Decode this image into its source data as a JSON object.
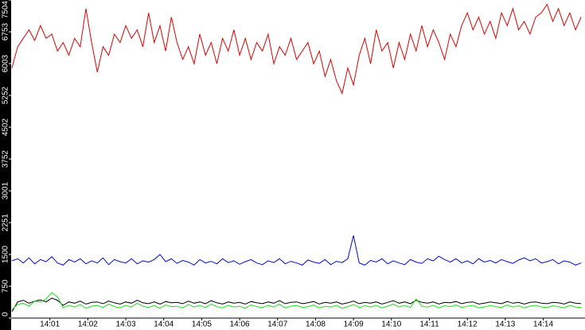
{
  "chart_data": {
    "type": "line",
    "xlim": [
      0,
      15.1
    ],
    "xticks": [
      {
        "value": 1,
        "label": "14:01"
      },
      {
        "value": 2,
        "label": "14:02"
      },
      {
        "value": 3,
        "label": "14:03"
      },
      {
        "value": 4,
        "label": "14:04"
      },
      {
        "value": 5,
        "label": "14:05"
      },
      {
        "value": 6,
        "label": "14:06"
      },
      {
        "value": 7,
        "label": "14:07"
      },
      {
        "value": 8,
        "label": "14:08"
      },
      {
        "value": 9,
        "label": "14:09"
      },
      {
        "value": 10,
        "label": "14:10"
      },
      {
        "value": 11,
        "label": "14:11"
      },
      {
        "value": 12,
        "label": "14:12"
      },
      {
        "value": 13,
        "label": "14:13"
      },
      {
        "value": 14,
        "label": "14:14"
      }
    ],
    "ylim": [
      0,
      7504
    ],
    "yticks": [
      0,
      750,
      1500,
      2251,
      3001,
      3752,
      4502,
      5252,
      6003,
      6753,
      7504
    ],
    "x": [
      0,
      0.15,
      0.3,
      0.45,
      0.6,
      0.75,
      0.9,
      1.05,
      1.2,
      1.35,
      1.5,
      1.65,
      1.8,
      1.95,
      2.1,
      2.25,
      2.4,
      2.55,
      2.7,
      2.85,
      3,
      3.15,
      3.3,
      3.45,
      3.6,
      3.75,
      3.9,
      4.05,
      4.2,
      4.35,
      4.5,
      4.65,
      4.8,
      4.95,
      5.1,
      5.25,
      5.4,
      5.55,
      5.7,
      5.85,
      6,
      6.15,
      6.3,
      6.45,
      6.6,
      6.75,
      6.9,
      7.05,
      7.2,
      7.35,
      7.5,
      7.65,
      7.8,
      7.95,
      8.1,
      8.25,
      8.4,
      8.55,
      8.7,
      8.85,
      9,
      9.15,
      9.3,
      9.45,
      9.6,
      9.75,
      9.9,
      10.05,
      10.2,
      10.35,
      10.5,
      10.65,
      10.8,
      10.95,
      11.1,
      11.25,
      11.4,
      11.55,
      11.7,
      11.85,
      12,
      12.15,
      12.3,
      12.45,
      12.6,
      12.75,
      12.9,
      13.05,
      13.2,
      13.35,
      13.5,
      13.65,
      13.8,
      13.95,
      14.1,
      14.25,
      14.4,
      14.55,
      14.7,
      14.85,
      15
    ],
    "series": [
      {
        "color": "#e00000",
        "values": [
          5900,
          6400,
          6600,
          6800,
          6550,
          6900,
          6600,
          6700,
          6300,
          6500,
          6200,
          6600,
          6400,
          7300,
          6500,
          5800,
          6400,
          6200,
          6700,
          6500,
          6900,
          6600,
          6800,
          6400,
          7200,
          6500,
          6900,
          6300,
          7100,
          6500,
          6100,
          6400,
          6000,
          6700,
          6200,
          6500,
          6000,
          6600,
          6300,
          6800,
          6200,
          6600,
          6100,
          6500,
          6300,
          6700,
          6000,
          6400,
          6200,
          6600,
          6100,
          6300,
          6500,
          6000,
          6300,
          5700,
          6100,
          5600,
          5300,
          5900,
          5500,
          6200,
          6600,
          6000,
          6800,
          6300,
          6500,
          5900,
          6500,
          6100,
          6700,
          6300,
          6900,
          6400,
          6800,
          6500,
          6100,
          6700,
          6400,
          6900,
          7200,
          6800,
          7100,
          6700,
          7000,
          6600,
          7200,
          6900,
          7300,
          6800,
          7000,
          6700,
          7100,
          7200,
          7400,
          7000,
          7300,
          6900,
          7200,
          6800,
          7100
        ]
      },
      {
        "color": "#0010c0",
        "values": [
          1350,
          1400,
          1300,
          1420,
          1280,
          1380,
          1330,
          1450,
          1300,
          1250,
          1380,
          1320,
          1400,
          1280,
          1350,
          1300,
          1420,
          1260,
          1380,
          1330,
          1300,
          1400,
          1280,
          1350,
          1320,
          1380,
          1500,
          1330,
          1400,
          1290,
          1360,
          1320,
          1250,
          1380,
          1300,
          1340,
          1280,
          1400,
          1310,
          1350,
          1270,
          1330,
          1380,
          1300,
          1260,
          1350,
          1310,
          1400,
          1280,
          1340,
          1300,
          1250,
          1370,
          1320,
          1290,
          1380,
          1260,
          1340,
          1310,
          1400,
          1950,
          1300,
          1250,
          1360,
          1320,
          1400,
          1280,
          1350,
          1300,
          1260,
          1380,
          1320,
          1290,
          1400,
          1350,
          1460,
          1380,
          1320,
          1400,
          1300,
          1350,
          1280,
          1400,
          1320,
          1360,
          1300,
          1380,
          1330,
          1290,
          1370,
          1420,
          1350,
          1400,
          1300,
          1330,
          1380,
          1280,
          1350,
          1320,
          1250,
          1300
        ]
      },
      {
        "color": "#22dd22",
        "values": [
          200,
          320,
          350,
          280,
          400,
          380,
          450,
          600,
          500,
          250,
          300,
          260,
          320,
          230,
          280,
          300,
          250,
          330,
          270,
          240,
          300,
          260,
          350,
          280,
          250,
          300,
          230,
          310,
          270,
          280,
          240,
          320,
          260,
          300,
          250,
          330,
          270,
          240,
          300,
          260,
          280,
          230,
          310,
          270,
          250,
          300,
          260,
          330,
          240,
          280,
          300,
          250,
          270,
          310,
          240,
          280,
          260,
          300,
          230,
          270,
          320,
          250,
          290,
          260,
          300,
          240,
          280,
          330,
          260,
          300,
          250,
          450,
          280,
          260,
          300,
          240,
          290,
          270,
          310,
          250,
          280,
          300,
          240,
          260,
          300,
          270,
          250,
          310,
          260,
          290,
          240,
          280,
          300,
          260,
          250,
          290,
          270,
          240,
          300,
          260,
          250
        ]
      },
      {
        "color": "#000000",
        "values": [
          150,
          380,
          420,
          350,
          400,
          430,
          380,
          470,
          420,
          300,
          380,
          350,
          400,
          330,
          370,
          380,
          340,
          400,
          360,
          330,
          380,
          350,
          420,
          360,
          340,
          380,
          330,
          390,
          360,
          370,
          340,
          400,
          350,
          380,
          340,
          410,
          360,
          330,
          380,
          350,
          370,
          330,
          390,
          360,
          340,
          380,
          350,
          410,
          340,
          370,
          380,
          340,
          360,
          390,
          330,
          370,
          350,
          380,
          330,
          360,
          400,
          340,
          370,
          350,
          380,
          330,
          370,
          410,
          350,
          380,
          340,
          420,
          370,
          350,
          380,
          330,
          370,
          360,
          390,
          340,
          370,
          380,
          330,
          350,
          380,
          360,
          340,
          390,
          350,
          370,
          330,
          370,
          380,
          350,
          340,
          370,
          360,
          330,
          380,
          350,
          340
        ]
      }
    ]
  }
}
